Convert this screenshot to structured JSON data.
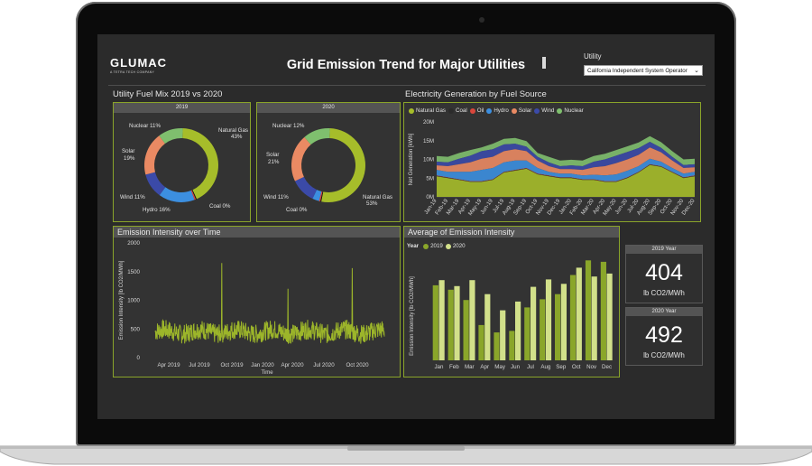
{
  "header": {
    "logo": "GLUMAC",
    "logo_tagline": "A TETRA TECH COMPANY",
    "title": "Grid Emission Trend for Major Utilities",
    "utility_label": "Utility",
    "utility_selected": "California Independent System Operator"
  },
  "fuel_mix": {
    "section_title": "Utility Fuel Mix 2019 vs 2020",
    "colors": {
      "natural_gas": "#a6bd2a",
      "coal": "#2b2b2b",
      "oil": "#d8473c",
      "hydro": "#3c8fe0",
      "solar": "#ea8a63",
      "wind": "#3b4aa8",
      "nuclear": "#7fbf6e"
    },
    "donuts": [
      {
        "title": "2019",
        "slices": [
          {
            "name": "Natural Gas",
            "label": "Natural Gas",
            "pct_label": "43%",
            "value": 43,
            "color": "#a6bd2a"
          },
          {
            "name": "Coal",
            "label": "Coal 0%",
            "value": 0.4,
            "color": "#111111"
          },
          {
            "name": "Oil",
            "label": "",
            "value": 0.6,
            "color": "#d8473c"
          },
          {
            "name": "Hydro",
            "label": "Hydro 16%",
            "value": 16,
            "color": "#3c8fe0"
          },
          {
            "name": "Wind",
            "label": "Wind 11%",
            "value": 11,
            "color": "#3b4aa8"
          },
          {
            "name": "Solar",
            "label": "Solar",
            "pct_label": "19%",
            "value": 19,
            "color": "#ea8a63"
          },
          {
            "name": "Nuclear",
            "label": "Nuclear 11%",
            "value": 11,
            "color": "#7fbf6e"
          }
        ]
      },
      {
        "title": "2020",
        "slices": [
          {
            "name": "Natural Gas",
            "label": "Natural Gas",
            "pct_label": "53%",
            "value": 53,
            "color": "#a6bd2a"
          },
          {
            "name": "Coal",
            "label": "Coal 0%",
            "value": 0.4,
            "color": "#111111"
          },
          {
            "name": "Oil",
            "label": "",
            "value": 0.6,
            "color": "#d8473c"
          },
          {
            "name": "Hydro",
            "label": "",
            "value": 3,
            "color": "#3c8fe0"
          },
          {
            "name": "Wind",
            "label": "Wind 11%",
            "value": 11,
            "color": "#3b4aa8"
          },
          {
            "name": "Solar",
            "label": "Solar",
            "pct_label": "21%",
            "value": 21,
            "color": "#ea8a63"
          },
          {
            "name": "Nuclear",
            "label": "Nuclear 12%",
            "value": 12,
            "color": "#7fbf6e"
          }
        ]
      }
    ]
  },
  "chart_data": [
    {
      "type": "area",
      "title": "Electricity Generation by Fuel Source",
      "ylabel": "Net Generation [kWh]",
      "ylim": [
        0,
        20000000
      ],
      "yticks": [
        "0M",
        "5M",
        "10M",
        "15M",
        "20M"
      ],
      "legend_position": "top",
      "categories": [
        "Jan-19",
        "Feb-19",
        "Mar-19",
        "Apr-19",
        "May-19",
        "Jun-19",
        "Jul-19",
        "Aug-19",
        "Sep-19",
        "Oct-19",
        "Nov-19",
        "Dec-19",
        "Jan-20",
        "Feb-20",
        "Mar-20",
        "Apr-20",
        "May-20",
        "Jun-20",
        "Jul-20",
        "Aug-20",
        "Sep-20",
        "Oct-20",
        "Nov-20",
        "Dec-20"
      ],
      "series": [
        {
          "name": "Natural Gas",
          "color": "#a6bd2a",
          "values": [
            5.5,
            5.0,
            4.5,
            4.0,
            4.0,
            4.5,
            6.5,
            7.0,
            7.5,
            6.0,
            5.5,
            5.0,
            5.0,
            4.5,
            4.5,
            4.0,
            4.0,
            5.0,
            6.5,
            8.5,
            8.0,
            6.5,
            5.0,
            5.5
          ]
        },
        {
          "name": "Coal",
          "color": "#2b2b2b",
          "values": [
            0.1,
            0.1,
            0.1,
            0.1,
            0.1,
            0.1,
            0.1,
            0.1,
            0.1,
            0.1,
            0.1,
            0.1,
            0.1,
            0.1,
            0.1,
            0.1,
            0.1,
            0.1,
            0.1,
            0.1,
            0.1,
            0.1,
            0.1,
            0.1
          ]
        },
        {
          "name": "Oil",
          "color": "#d8473c",
          "values": [
            0.1,
            0.1,
            0.1,
            0.1,
            0.1,
            0.1,
            0.1,
            0.1,
            0.1,
            0.1,
            0.1,
            0.1,
            0.1,
            0.1,
            0.1,
            0.1,
            0.1,
            0.1,
            0.1,
            0.1,
            0.1,
            0.1,
            0.1,
            0.1
          ]
        },
        {
          "name": "Hydro",
          "color": "#3c8fe0",
          "values": [
            1.5,
            1.5,
            2.0,
            2.5,
            3.0,
            3.0,
            2.5,
            2.5,
            2.0,
            1.5,
            1.0,
            1.0,
            1.0,
            1.0,
            1.2,
            1.5,
            1.8,
            1.8,
            1.5,
            1.5,
            1.2,
            1.0,
            1.0,
            1.0
          ]
        },
        {
          "name": "Solar",
          "color": "#ea8a63",
          "values": [
            1.2,
            1.5,
            2.0,
            2.5,
            3.0,
            3.0,
            3.0,
            3.0,
            2.5,
            2.0,
            1.5,
            1.2,
            1.2,
            1.5,
            2.0,
            2.5,
            3.0,
            3.0,
            3.0,
            3.0,
            2.5,
            2.0,
            1.5,
            1.2
          ]
        },
        {
          "name": "Wind",
          "color": "#3b4aa8",
          "values": [
            1.0,
            1.0,
            1.5,
            1.8,
            2.0,
            2.0,
            1.8,
            1.5,
            1.2,
            1.0,
            1.0,
            0.8,
            1.0,
            1.0,
            1.5,
            1.8,
            2.0,
            2.0,
            1.8,
            1.5,
            1.2,
            1.0,
            0.8,
            0.8
          ]
        },
        {
          "name": "Nuclear",
          "color": "#7fbf6e",
          "values": [
            1.5,
            1.5,
            1.5,
            1.5,
            1.0,
            1.5,
            1.5,
            1.5,
            1.5,
            1.0,
            1.5,
            1.5,
            1.5,
            1.5,
            1.5,
            1.5,
            1.5,
            1.5,
            1.5,
            1.5,
            1.5,
            1.5,
            1.5,
            1.5
          ]
        }
      ],
      "value_unit": "M kWh"
    },
    {
      "type": "line",
      "title": "Emission Intensity over Time",
      "xlabel": "Time",
      "ylabel": "Emission Intensity [lb CO2/MWh]",
      "ylim": [
        0,
        2000
      ],
      "yticks": [
        "0",
        "500",
        "1000",
        "1500",
        "2000"
      ],
      "xticks": [
        "Apr 2019",
        "Jul 2019",
        "Oct 2019",
        "Jan 2020",
        "Apr 2020",
        "Jul 2020",
        "Oct 2020"
      ],
      "xrange": [
        "2019-01",
        "2020-12"
      ],
      "series": [
        {
          "name": "",
          "color": "#9cb52a",
          "baseline": 450,
          "spread": 170,
          "spikes": [
            {
              "t": 0.29,
              "v": 1650
            },
            {
              "t": 0.58,
              "v": 1200
            },
            {
              "t": 0.86,
              "v": 1560
            }
          ]
        }
      ]
    },
    {
      "type": "bar",
      "title": "Average of Emission Intensity",
      "xlabel": "",
      "ylabel": "Emission Intensity [lb CO2/MWh]",
      "ylim": [
        0,
        700
      ],
      "legend_title": "Year",
      "categories": [
        "Jan",
        "Feb",
        "Mar",
        "Apr",
        "May",
        "Jun",
        "Jul",
        "Aug",
        "Sep",
        "Oct",
        "Nov",
        "Dec"
      ],
      "series": [
        {
          "name": "2019",
          "color": "#8aa62a",
          "values": [
            510,
            480,
            410,
            240,
            190,
            200,
            360,
            415,
            450,
            580,
            680,
            670
          ]
        },
        {
          "name": "2020",
          "color": "#d2e08a",
          "values": [
            545,
            505,
            545,
            450,
            340,
            400,
            500,
            550,
            520,
            630,
            570,
            590
          ]
        }
      ]
    }
  ],
  "cards": [
    {
      "title": "2019 Year",
      "value": "404",
      "unit": "lb CO2/MWh"
    },
    {
      "title": "2020 Year",
      "value": "492",
      "unit": "lb CO2/MWh"
    }
  ]
}
